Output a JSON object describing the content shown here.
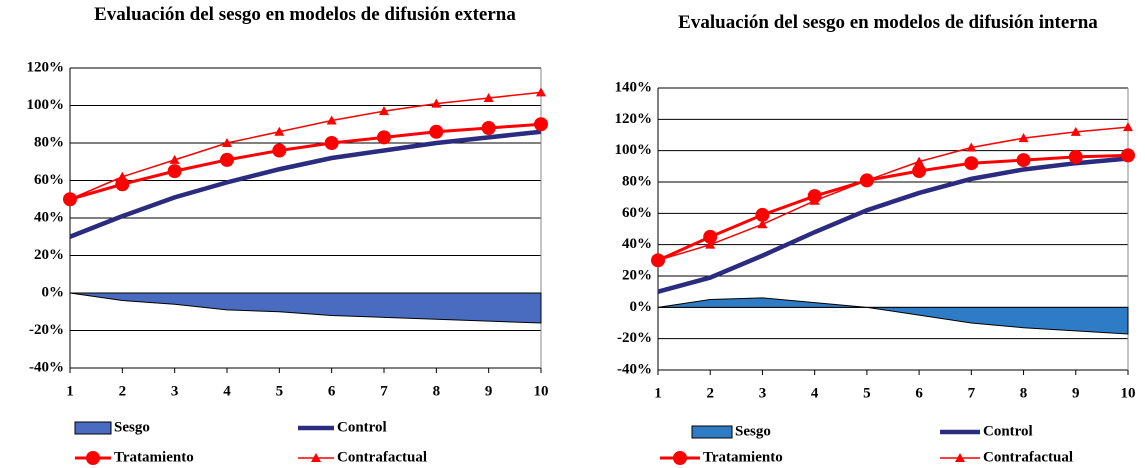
{
  "chart_data": [
    {
      "type": "line",
      "title": "Evaluación del sesgo en modelos de difusión externa",
      "x": [
        1,
        2,
        3,
        4,
        5,
        6,
        7,
        8,
        9,
        10
      ],
      "xlim": [
        1,
        10
      ],
      "xticks": [
        1,
        2,
        3,
        4,
        5,
        6,
        7,
        8,
        9,
        10
      ],
      "ylim": [
        -40,
        120
      ],
      "yticks": [
        {
          "value": -40,
          "label": "-40%"
        },
        {
          "value": -20,
          "label": "-20%"
        },
        {
          "value": 0,
          "label": "0%"
        },
        {
          "value": 20,
          "label": "20%"
        },
        {
          "value": 40,
          "label": "40%"
        },
        {
          "value": 60,
          "label": "60%"
        },
        {
          "value": 80,
          "label": "80%"
        },
        {
          "value": 100,
          "label": "100%"
        },
        {
          "value": 120,
          "label": "120%"
        }
      ],
      "grid": true,
      "series": [
        {
          "name": "Sesgo",
          "color": "#4a6cc0",
          "style": "area",
          "values": [
            0,
            -4,
            -6,
            -9,
            -10,
            -12,
            -13,
            -14,
            -15,
            -16
          ]
        },
        {
          "name": "Control",
          "color": "#2b2b80",
          "style": "line",
          "values": [
            30,
            41,
            51,
            59,
            66,
            72,
            76,
            80,
            83,
            86
          ]
        },
        {
          "name": "Tratamiento",
          "color": "#ff0000",
          "style": "circle",
          "values": [
            50,
            58,
            65,
            71,
            76,
            80,
            83,
            86,
            88,
            90
          ]
        },
        {
          "name": "Contrafactual",
          "color": "#ff0000",
          "style": "triangle",
          "values": [
            50,
            62,
            71,
            80,
            86,
            92,
            97,
            101,
            104,
            107
          ]
        }
      ]
    },
    {
      "type": "line",
      "title": "Evaluación del sesgo en modelos de difusión interna",
      "x": [
        1,
        2,
        3,
        4,
        5,
        6,
        7,
        8,
        9,
        10
      ],
      "xlim": [
        1,
        10
      ],
      "xticks": [
        1,
        2,
        3,
        4,
        5,
        6,
        7,
        8,
        9,
        10
      ],
      "ylim": [
        -40,
        140
      ],
      "yticks": [
        {
          "value": -40,
          "label": "-40%"
        },
        {
          "value": -20,
          "label": "-20%"
        },
        {
          "value": 0,
          "label": "0%"
        },
        {
          "value": 20,
          "label": "20%"
        },
        {
          "value": 40,
          "label": "40%"
        },
        {
          "value": 60,
          "label": "60%"
        },
        {
          "value": 80,
          "label": "80%"
        },
        {
          "value": 100,
          "label": "100%"
        },
        {
          "value": 120,
          "label": "120%"
        },
        {
          "value": 140,
          "label": "140%"
        }
      ],
      "grid": true,
      "series": [
        {
          "name": "Sesgo",
          "color": "#2f7cc6",
          "style": "area",
          "values": [
            0,
            5,
            6,
            3,
            0,
            -5,
            -10,
            -13,
            -15,
            -17
          ]
        },
        {
          "name": "Control",
          "color": "#2b2b80",
          "style": "line",
          "values": [
            10,
            19,
            33,
            48,
            62,
            73,
            82,
            88,
            92,
            95
          ]
        },
        {
          "name": "Tratamiento",
          "color": "#ff0000",
          "style": "circle",
          "values": [
            30,
            45,
            59,
            71,
            81,
            87,
            92,
            94,
            96,
            97
          ]
        },
        {
          "name": "Contrafactual",
          "color": "#ff0000",
          "style": "triangle",
          "values": [
            30,
            40,
            53,
            68,
            81,
            93,
            102,
            108,
            112,
            115
          ]
        }
      ]
    }
  ]
}
